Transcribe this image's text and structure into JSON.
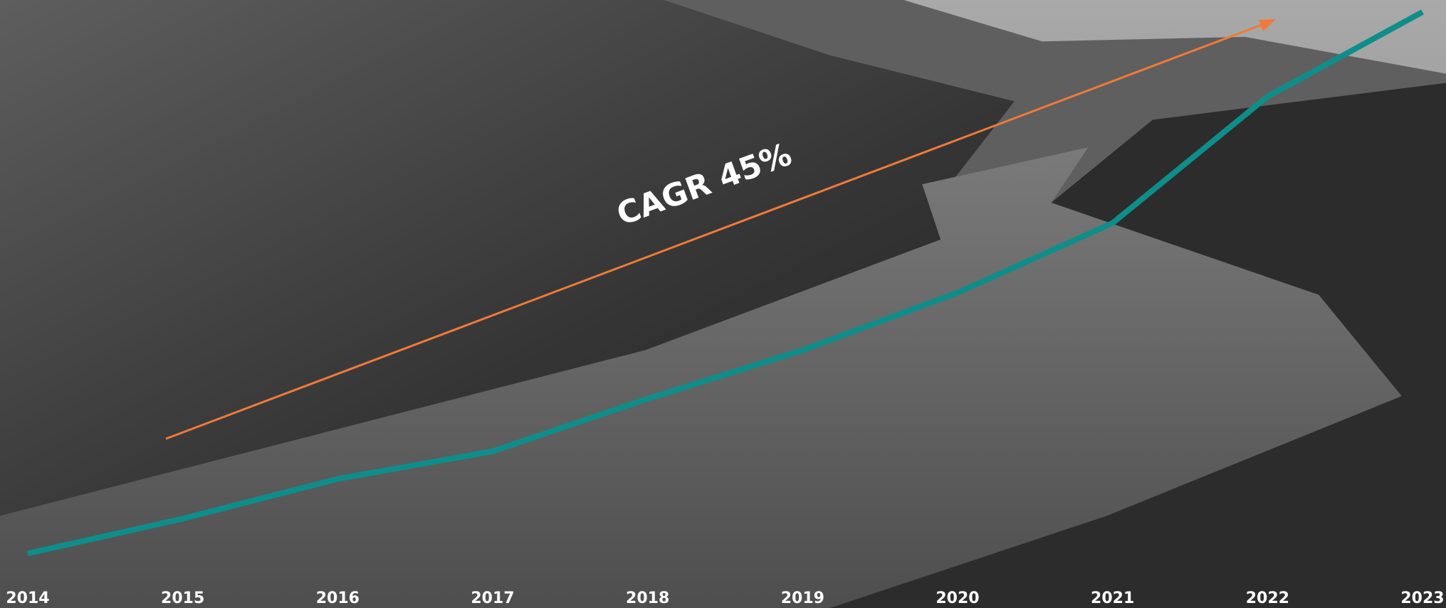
{
  "chart_data": {
    "type": "line",
    "annotation": "CAGR 45%",
    "categories": [
      "2014",
      "2015",
      "2016",
      "2017",
      "2018",
      "2019",
      "2020",
      "2021",
      "2022",
      "2023"
    ],
    "series": [
      {
        "color": "#0e8e8b",
        "values": [
          1.5,
          7.8,
          15,
          20,
          29.5,
          38.3,
          48.7,
          61.3,
          84.2,
          99.5
        ]
      }
    ],
    "ylim": [
      0,
      100
    ],
    "trend_color": "#f07a3a"
  }
}
